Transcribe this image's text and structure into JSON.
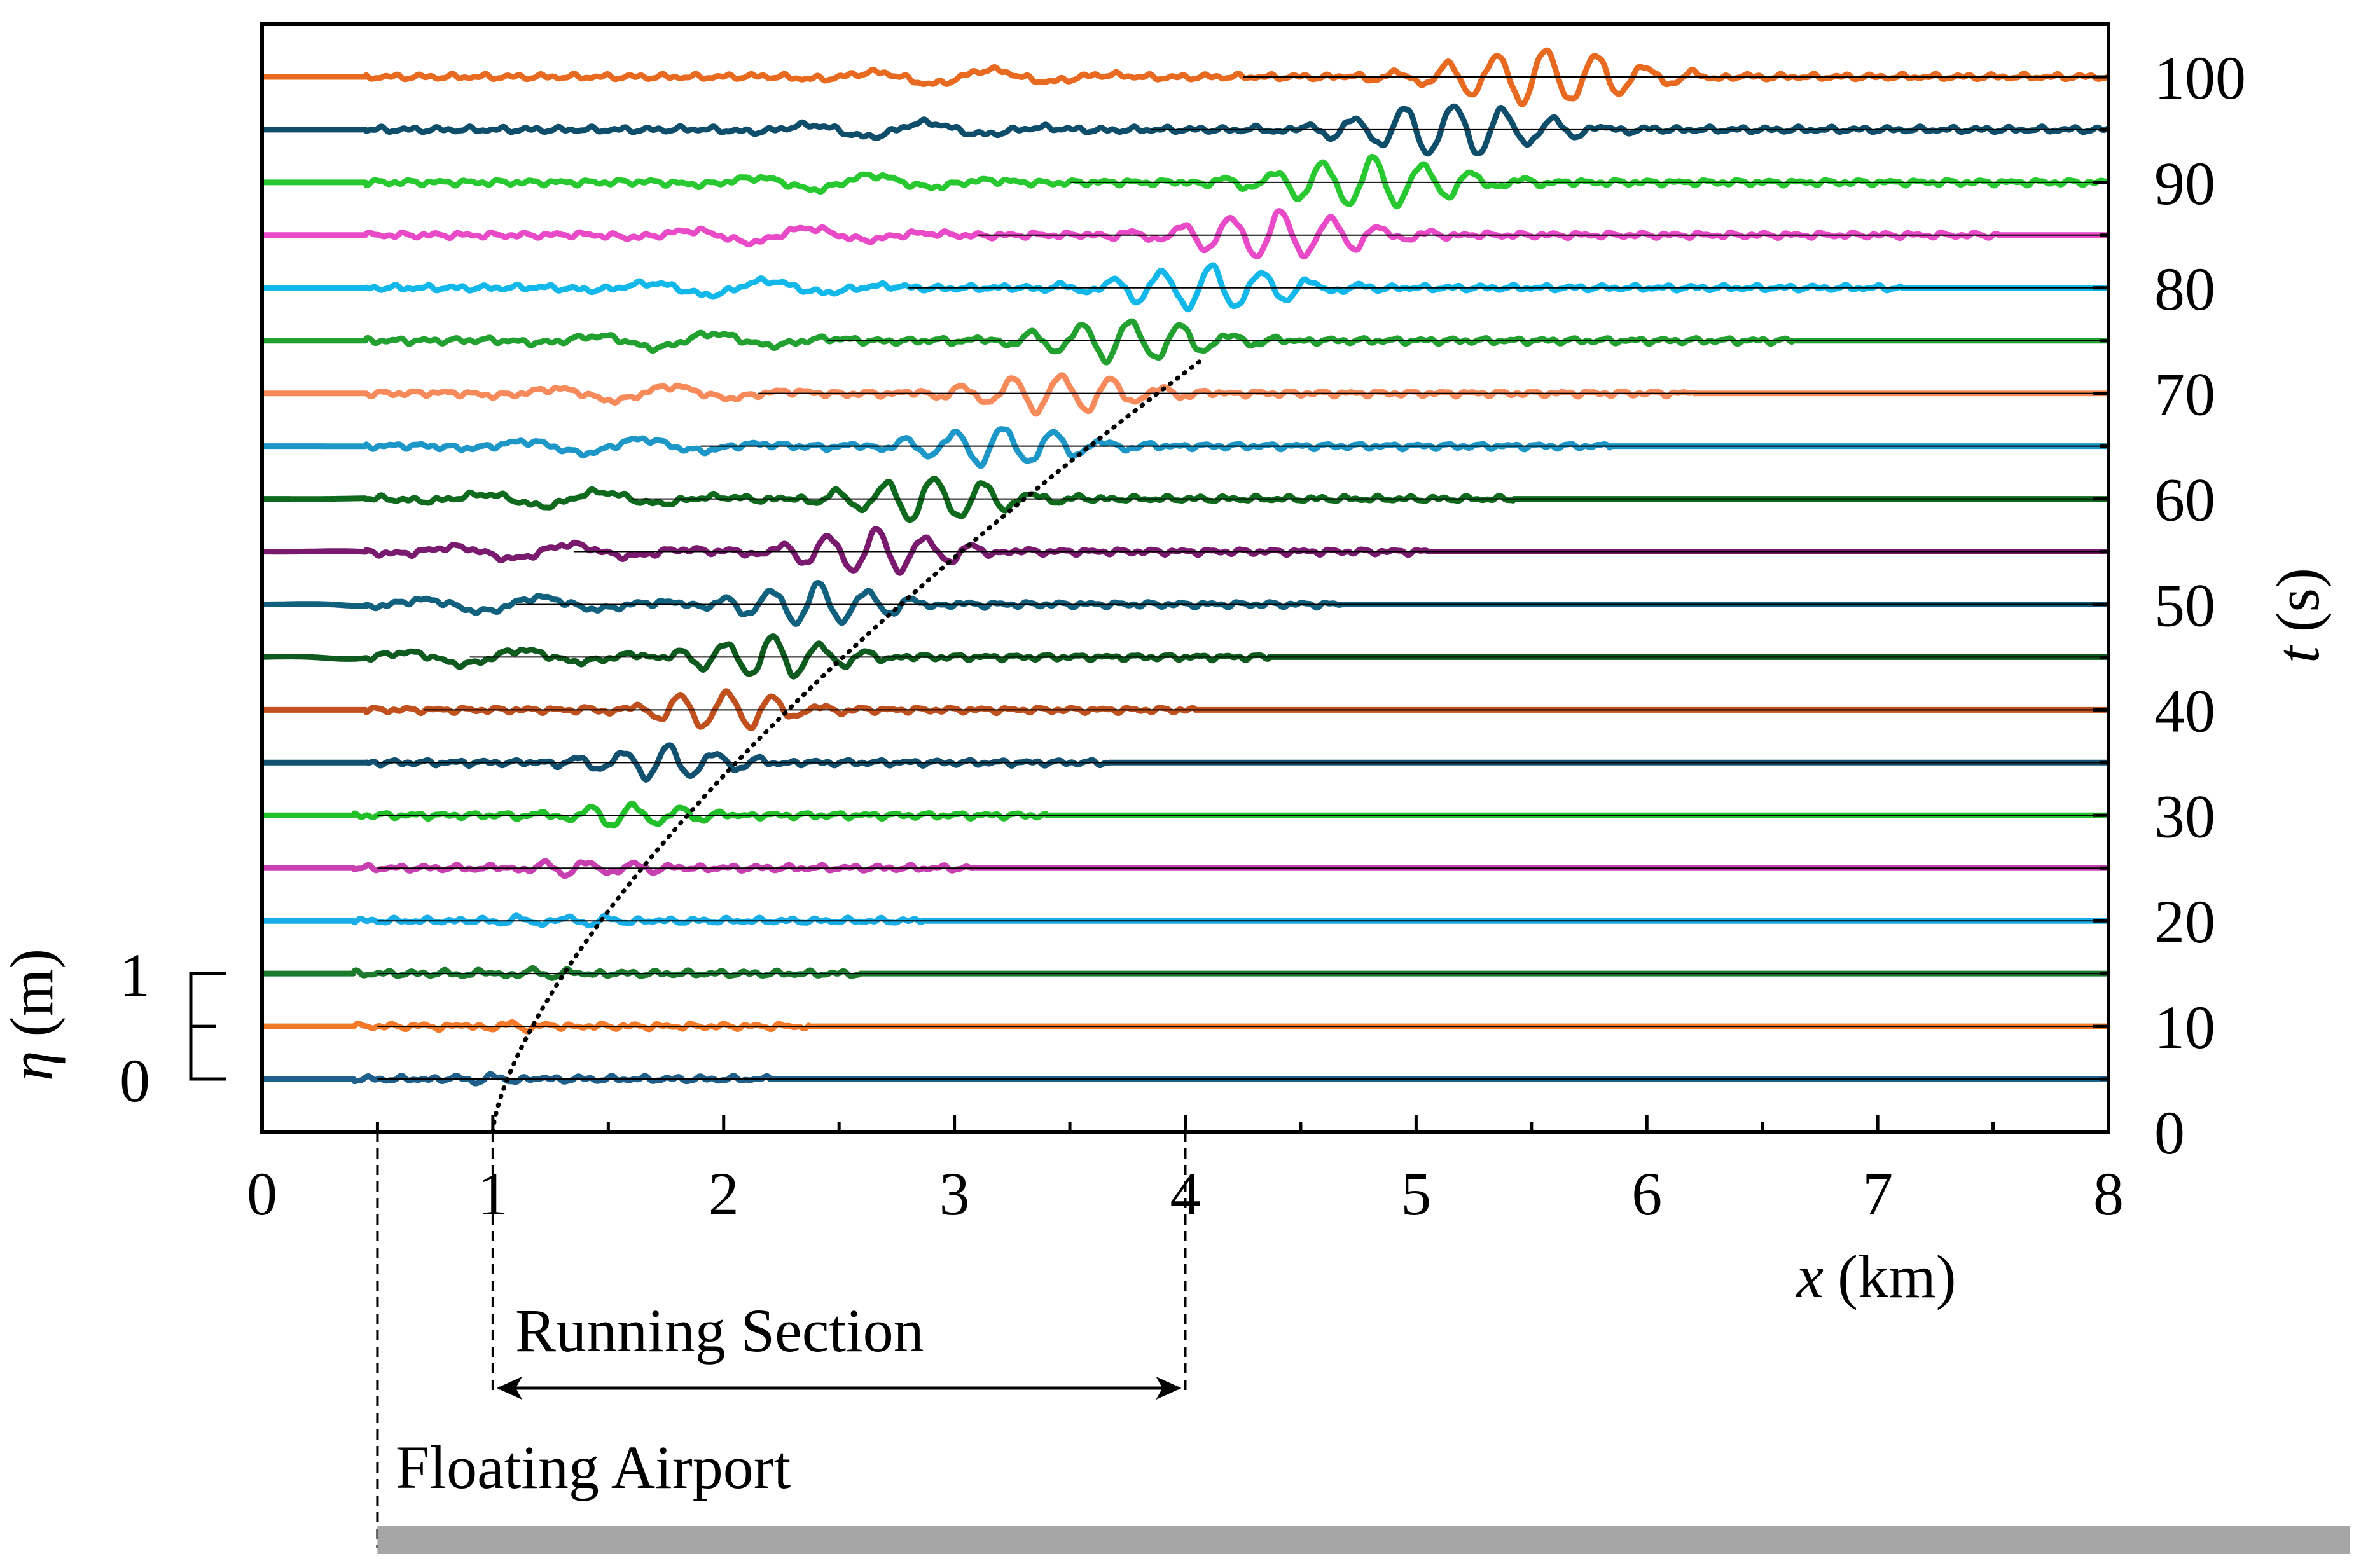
{
  "chart_data": {
    "type": "line",
    "title": "",
    "xlabel": {
      "symbol": "x",
      "unit": "(km)"
    },
    "ylabel_right": {
      "symbol": "t",
      "unit": "(s)"
    },
    "ylabel_left": {
      "symbol": "η",
      "unit": "(m)"
    },
    "x_ticks": [
      "0",
      "1",
      "2",
      "3",
      "4",
      "5",
      "6",
      "7",
      "8"
    ],
    "xlim": [
      0,
      8
    ],
    "t_ticks": [
      "0",
      "10",
      "20",
      "30",
      "40",
      "50",
      "60",
      "70",
      "80",
      "90",
      "100"
    ],
    "tlim": [
      0,
      105
    ],
    "eta_scale_labels": [
      "1",
      "0"
    ],
    "eta_scale_m": 1,
    "trace_offset_t_s": 5,
    "time_step_s": 5,
    "traces_time_s": [
      5,
      10,
      15,
      20,
      25,
      30,
      35,
      40,
      45,
      50,
      55,
      60,
      65,
      70,
      75,
      80,
      85,
      90,
      95,
      100
    ],
    "trace_colors": [
      "#1f5f8b",
      "#f47a2a",
      "#1c7a2c",
      "#19aee8",
      "#c840b0",
      "#22c02a",
      "#11506e",
      "#c0501e",
      "#0f5a1e",
      "#11607e",
      "#7a1a6e",
      "#0f6a1e",
      "#1d96c8",
      "#f78a5a",
      "#22a030",
      "#12b8ea",
      "#e84ac8",
      "#28c830",
      "#0f4e6a",
      "#e86a20"
    ],
    "wave_packet_x_km": [
      1.0,
      1.05,
      1.15,
      1.3,
      1.4,
      1.6,
      1.75,
      2.0,
      2.2,
      2.4,
      2.65,
      2.9,
      3.2,
      3.45,
      3.75,
      4.1,
      4.4,
      4.8,
      5.15,
      5.55
    ],
    "wave_packet_amp_m": [
      0.1,
      0.1,
      0.12,
      0.15,
      0.25,
      0.4,
      0.6,
      0.7,
      0.75,
      0.75,
      0.8,
      0.8,
      0.7,
      0.7,
      0.75,
      0.8,
      0.85,
      0.9,
      0.95,
      1.0
    ],
    "running_section_km": [
      1,
      4
    ],
    "floating_airport_start_km": 0.5,
    "arrival_curve": "dotted",
    "legend": "none"
  },
  "annotations": {
    "running_section": "Running Section",
    "floating_airport": "Floating Airport"
  },
  "colors": {
    "axes": "#000000",
    "airport_bar": "#a6a6a6",
    "baseline": "#000000"
  }
}
